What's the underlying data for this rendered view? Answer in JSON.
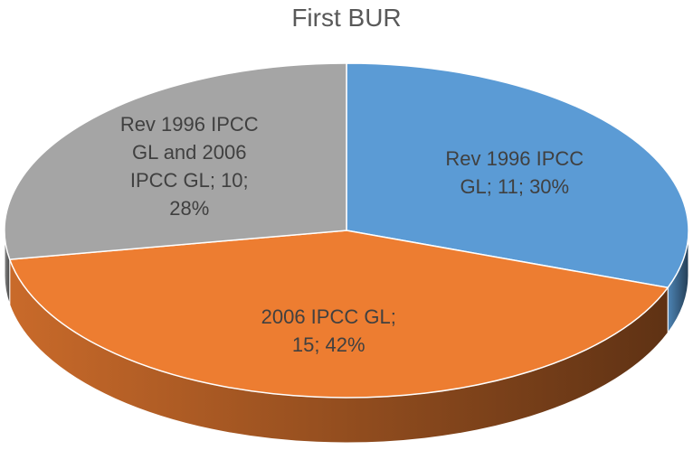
{
  "chart_data": {
    "type": "pie",
    "title": "First BUR",
    "categories": [
      "Rev 1996 IPCC GL",
      "2006 IPCC GL",
      "Rev 1996 IPCC GL and 2006 IPCC GL"
    ],
    "values": [
      11,
      15,
      10
    ],
    "value_labels": [
      "Rev 1996 IPCC GL; 11; 30%",
      "2006 IPCC GL; 15; 42%",
      "Rev 1996 IPCC GL and 2006 IPCC GL; 10; 28%"
    ],
    "colors": [
      "#5b9bd5",
      "#ed7d31",
      "#a5a5a5"
    ]
  }
}
